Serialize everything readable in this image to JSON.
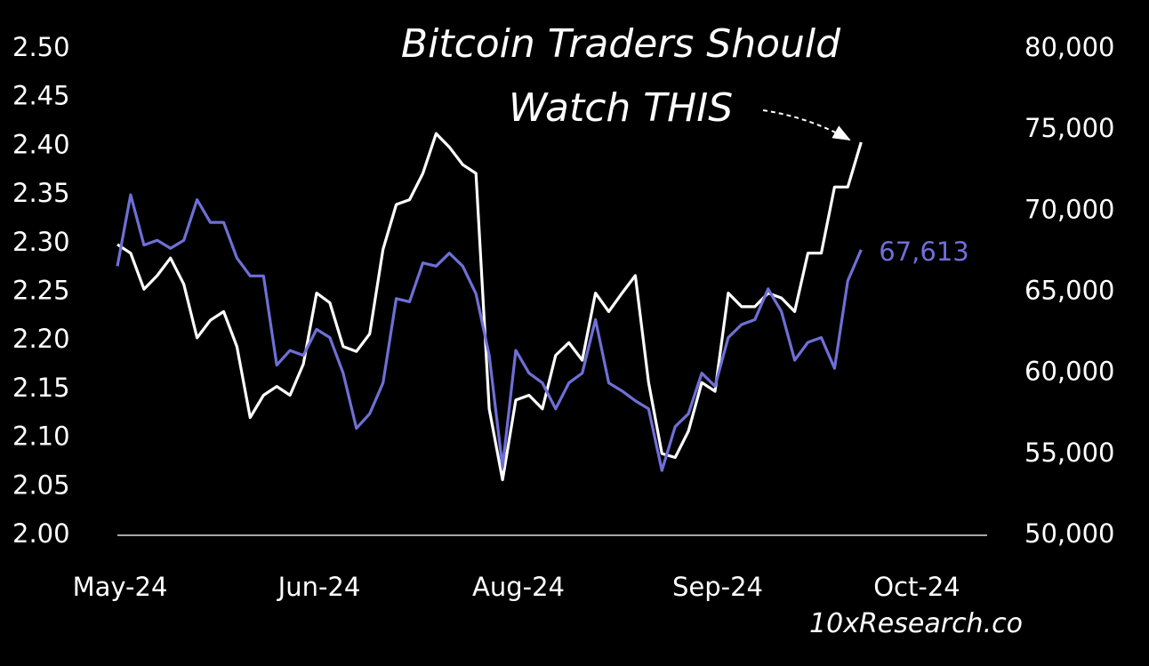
{
  "chart_data": {
    "type": "line",
    "title": "Bitcoin Traders Should Watch THIS",
    "source": "10xResearch.co",
    "categories": [
      "May-24",
      null,
      null,
      null,
      null,
      null,
      null,
      null,
      null,
      null,
      null,
      null,
      null,
      null,
      null,
      "Jun-24",
      null,
      null,
      null,
      null,
      null,
      null,
      null,
      null,
      null,
      null,
      null,
      null,
      null,
      null,
      "Aug-24",
      null,
      null,
      null,
      null,
      null,
      null,
      null,
      null,
      null,
      null,
      null,
      null,
      null,
      null,
      "Sep-24",
      null,
      null,
      null,
      null,
      null,
      null,
      null,
      null,
      null,
      null,
      null,
      null,
      null,
      null,
      "Oct-24"
    ],
    "series": [
      {
        "color": "#ffffff",
        "axis": "y",
        "values": [
          2.299,
          2.29,
          2.253,
          2.267,
          2.285,
          2.258,
          2.203,
          2.221,
          2.23,
          2.194,
          2.121,
          2.144,
          2.153,
          2.144,
          2.176,
          2.249,
          2.239,
          2.194,
          2.189,
          2.207,
          2.294,
          2.34,
          2.345,
          2.372,
          2.413,
          2.399,
          2.381,
          2.372,
          2.13,
          2.057,
          2.139,
          2.144,
          2.13,
          2.185,
          2.198,
          2.18,
          2.249,
          2.23,
          2.249,
          2.267,
          2.157,
          2.084,
          2.08,
          2.107,
          2.157,
          2.148,
          2.249,
          2.235,
          2.235,
          2.249,
          2.244,
          2.23,
          2.29,
          2.29,
          2.358,
          2.358,
          2.404,
          null,
          null,
          null,
          null
        ]
      },
      {
        "color": "#6f6fd6",
        "axis": "y2",
        "values": [
          66600,
          71000,
          67900,
          68200,
          67700,
          68200,
          70700,
          69300,
          69300,
          67100,
          66000,
          66000,
          60500,
          61400,
          61100,
          62700,
          62200,
          60000,
          56600,
          57500,
          59400,
          64600,
          64400,
          66800,
          66600,
          67400,
          66600,
          64900,
          61100,
          54200,
          61400,
          60000,
          59400,
          57800,
          59400,
          60000,
          63300,
          59400,
          58900,
          58300,
          57800,
          54000,
          56700,
          57500,
          60000,
          59200,
          62200,
          63000,
          63300,
          65200,
          63800,
          60800,
          61900,
          62200,
          60300,
          65700,
          67613,
          null,
          null,
          null,
          null
        ],
        "value_labels": [
          null,
          null,
          null,
          null,
          null,
          null,
          null,
          null,
          null,
          null,
          null,
          null,
          null,
          null,
          null,
          null,
          null,
          null,
          null,
          null,
          null,
          null,
          null,
          null,
          null,
          null,
          null,
          null,
          null,
          null,
          null,
          null,
          null,
          null,
          null,
          null,
          null,
          null,
          null,
          null,
          null,
          null,
          null,
          null,
          null,
          null,
          null,
          null,
          null,
          null,
          null,
          null,
          null,
          null,
          null,
          null,
          "67,613",
          null,
          null,
          null,
          null
        ]
      }
    ],
    "ylim": [
      2.0,
      2.5
    ],
    "yticks": [
      {
        "value": 2.0,
        "label": "2.00"
      },
      2.05,
      {
        "value": 2.1,
        "label": "2.10"
      },
      2.15,
      {
        "value": 2.2,
        "label": "2.20"
      },
      2.25,
      {
        "value": 2.3,
        "label": "2.30"
      },
      2.35,
      {
        "value": 2.4,
        "label": "2.40"
      },
      2.45,
      {
        "value": 2.5,
        "label": "2.50"
      }
    ],
    "y2lim": [
      50000,
      80000
    ],
    "y2ticks": [
      {
        "value": 50000,
        "label": "50,000"
      },
      {
        "value": 55000,
        "label": "55,000"
      },
      {
        "value": 60000,
        "label": "60,000"
      },
      {
        "value": 65000,
        "label": "65,000"
      },
      {
        "value": 70000,
        "label": "70,000"
      },
      {
        "value": 75000,
        "label": "75,000"
      },
      {
        "value": 80000,
        "label": "80,000"
      }
    ]
  }
}
